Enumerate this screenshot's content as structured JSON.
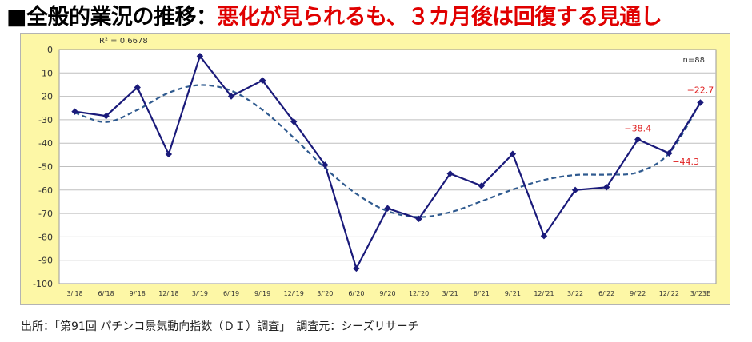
{
  "header": {
    "title_lead": "■全般的業況の推移：",
    "title_sub": "悪化が見られるも、３カ月後は回復する見通し"
  },
  "footer": {
    "source": "出所：「第91回 パチンコ景気動向指数（ＤＩ）調査」　調査元：シーズリサーチ"
  },
  "colors": {
    "plot_background": "#fdf7a6",
    "plot_area": "#ffffff",
    "series_line": "#1a1a7a",
    "trend_line": "#2f5a8f",
    "annotation": "#e02020"
  },
  "chart_data": {
    "type": "line",
    "categories": [
      "3/'18",
      "6/'18",
      "9/'18",
      "12/'18",
      "3/'19",
      "6/'19",
      "9/'19",
      "12/'19",
      "3/'20",
      "6/'20",
      "9/'20",
      "12/'20",
      "3/'21",
      "6/'21",
      "9/'21",
      "12/'21",
      "3/'22",
      "6/'22",
      "9/'22",
      "12/'22",
      "3/'23E"
    ],
    "series": [
      {
        "values": [
          -26.5,
          -28.4,
          -16.2,
          -44.7,
          -2.8,
          -20.0,
          -13.2,
          -30.8,
          -49.3,
          -93.5,
          -67.8,
          -72.3,
          -53.0,
          -58.2,
          -44.6,
          -79.6,
          -60.0,
          -58.8,
          -38.4,
          -44.3,
          -22.7
        ]
      }
    ],
    "trendline": {
      "type": "polynomial",
      "style": "dashed",
      "values": [
        -27.0,
        -31.0,
        -25.8,
        -18.5,
        -15.2,
        -17.6,
        -25.8,
        -37.7,
        -50.6,
        -61.6,
        -69.0,
        -71.5,
        -69.5,
        -64.8,
        -59.8,
        -55.7,
        -53.6,
        -53.4,
        -52.4,
        -44.3,
        -22.7
      ]
    },
    "r_squared_label": "R² = 0.6678",
    "n_label": "n=88",
    "annotations": [
      {
        "index": 18,
        "text": "−38.4"
      },
      {
        "index": 19,
        "text": "−44.3"
      },
      {
        "index": 20,
        "text": "−22.7"
      }
    ],
    "yticks": [
      "0",
      "-10",
      "-20",
      "-30",
      "-40",
      "-50",
      "-60",
      "-70",
      "-80",
      "-90",
      "-100"
    ],
    "ylim": [
      -100,
      0
    ],
    "grid": true,
    "legend": "none"
  }
}
